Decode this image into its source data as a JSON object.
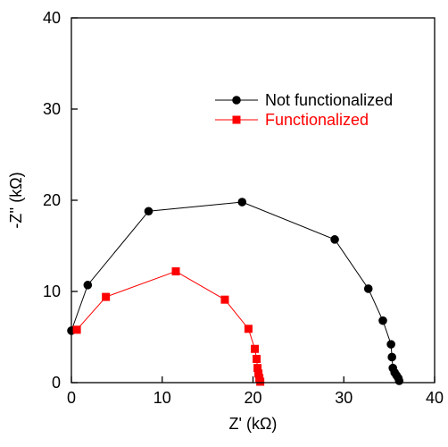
{
  "chart_data": {
    "type": "scatter",
    "title": "",
    "xlabel": "Z' (kΩ)",
    "ylabel": "-Z'' (kΩ)",
    "xlim": [
      0,
      40
    ],
    "ylim": [
      0,
      40
    ],
    "xticks": [
      "0",
      "10",
      "20",
      "30",
      "40"
    ],
    "yticks": [
      "0",
      "10",
      "20",
      "30",
      "40"
    ],
    "grid": false,
    "legend_position": "top-right",
    "series": [
      {
        "name": "Not functionalized",
        "color": "#000000",
        "marker": "circle",
        "line": true,
        "points": [
          [
            0.0,
            5.7
          ],
          [
            1.8,
            10.7
          ],
          [
            8.5,
            18.8
          ],
          [
            18.8,
            19.8
          ],
          [
            29.0,
            15.7
          ],
          [
            32.7,
            10.3
          ],
          [
            34.3,
            6.8
          ],
          [
            35.2,
            4.2
          ],
          [
            35.3,
            2.8
          ],
          [
            35.4,
            1.6
          ],
          [
            35.6,
            1.1
          ],
          [
            35.8,
            0.8
          ],
          [
            36.0,
            0.5
          ],
          [
            36.1,
            0.2
          ]
        ]
      },
      {
        "name": "Functionalized",
        "color": "#ff0000",
        "marker": "square",
        "line": true,
        "points": [
          [
            0.6,
            5.8
          ],
          [
            3.8,
            9.4
          ],
          [
            11.5,
            12.2
          ],
          [
            16.9,
            9.1
          ],
          [
            19.5,
            5.9
          ],
          [
            20.2,
            3.7
          ],
          [
            20.4,
            2.6
          ],
          [
            20.5,
            1.6
          ],
          [
            20.6,
            1.0
          ],
          [
            20.7,
            0.5
          ],
          [
            20.8,
            0.1
          ]
        ]
      }
    ]
  }
}
